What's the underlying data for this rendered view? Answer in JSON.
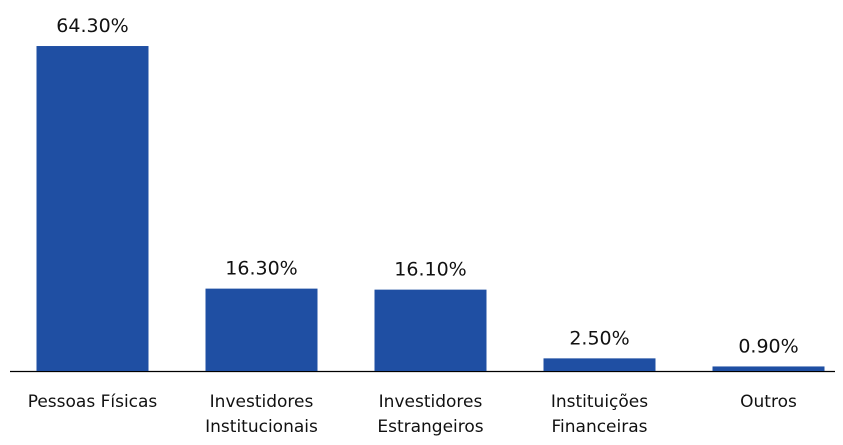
{
  "chart_data": {
    "type": "bar",
    "categories": [
      "Pessoas Físicas",
      "Investidores Institucionais",
      "Investidores Estrangeiros",
      "Instituições Financeiras",
      "Outros"
    ],
    "values": [
      64.3,
      16.3,
      16.1,
      2.5,
      0.9
    ],
    "value_labels": [
      "64.30%",
      "16.30%",
      "16.10%",
      "2.50%",
      "0.90%"
    ],
    "color": "#1f4fa3"
  }
}
